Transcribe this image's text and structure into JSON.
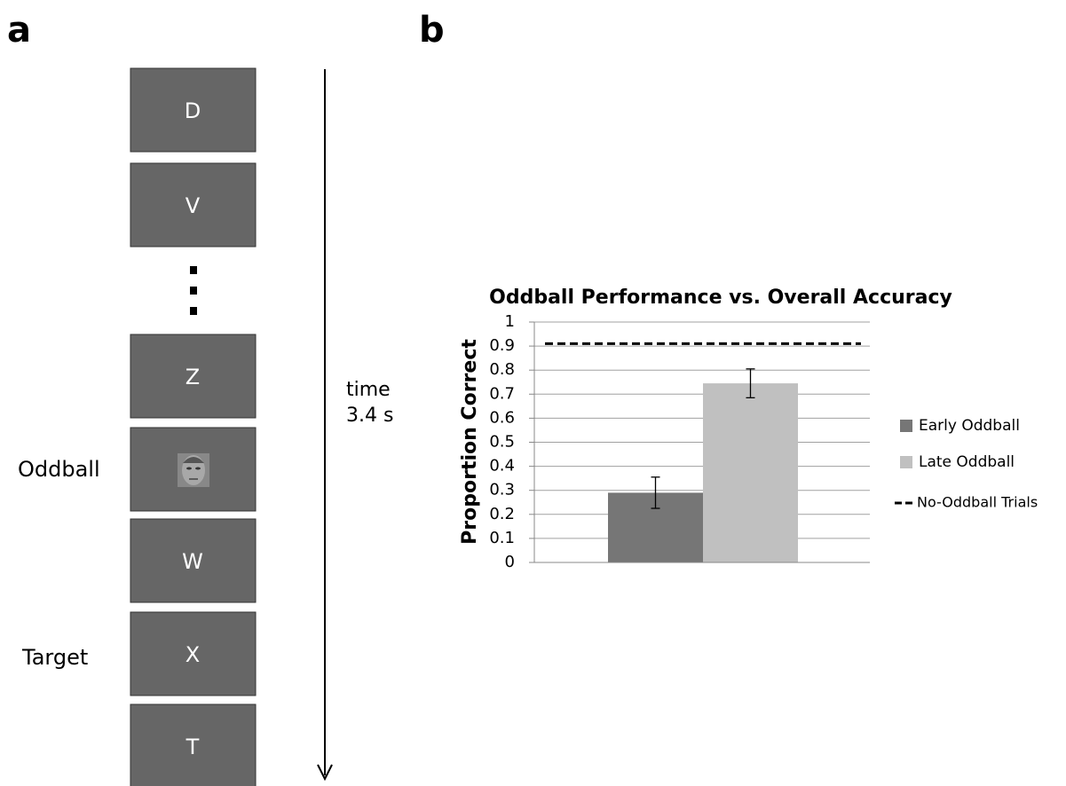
{
  "panels": {
    "a": "a",
    "b": "b"
  },
  "sequence": {
    "frames": [
      "D",
      "V",
      "Z",
      "W",
      "X",
      "T"
    ],
    "oddball_label": "Oddball",
    "target_label": "Target",
    "time_label": "time",
    "duration": "3.4 s"
  },
  "chart_data": {
    "type": "bar",
    "title": "Oddball Performance vs. Overall Accuracy",
    "y_label": "Proportion Correct",
    "categories": [
      null
    ],
    "series": [
      {
        "name": "Early Oddball",
        "color": "#767676",
        "values": [
          0.29
        ],
        "errors": [
          0.065
        ]
      },
      {
        "name": "Late Oddball",
        "color": "#c0c0c0",
        "values": [
          0.745
        ],
        "errors": [
          0.06
        ]
      }
    ],
    "reference_line": {
      "name": "No-Oddball Trials",
      "value": 0.91,
      "color": "#000000"
    },
    "ylim": [
      0,
      1
    ],
    "yticks": [
      0,
      0.1,
      0.2,
      0.3,
      0.4,
      0.5,
      0.6,
      0.7,
      0.8,
      0.9,
      1
    ],
    "grid": true
  }
}
